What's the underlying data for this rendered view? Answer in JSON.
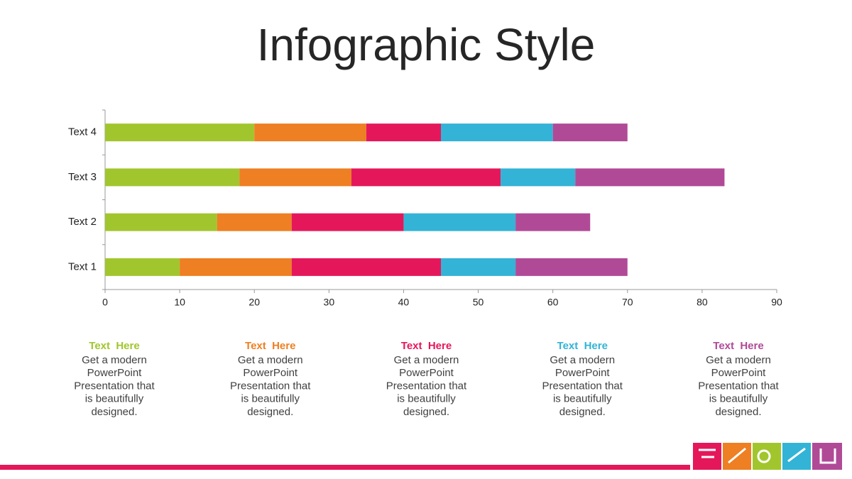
{
  "chart_data": {
    "type": "stacked-barh",
    "title": "Infographic Style",
    "categories": [
      "Text 1",
      "Text 2",
      "Text 3",
      "Text 4"
    ],
    "series": [
      {
        "color": "#a1c62d",
        "values": [
          10,
          15,
          18,
          20
        ]
      },
      {
        "color": "#ee7f22",
        "values": [
          15,
          10,
          15,
          15
        ]
      },
      {
        "color": "#e5175b",
        "values": [
          20,
          15,
          20,
          10
        ]
      },
      {
        "color": "#33b3d6",
        "values": [
          10,
          15,
          10,
          15
        ]
      },
      {
        "color": "#b04a97",
        "values": [
          15,
          10,
          20,
          10
        ]
      }
    ],
    "xlim": [
      0,
      90
    ],
    "xticks": [
      0,
      10,
      20,
      30,
      40,
      50,
      60,
      70,
      80,
      90
    ]
  },
  "captions": [
    {
      "title": "Text  Here",
      "lines": [
        "Get a modern",
        "PowerPoint",
        "Presentation that",
        "is beautifully",
        "designed."
      ]
    },
    {
      "title": "Text  Here",
      "lines": [
        "Get a modern",
        "PowerPoint",
        "Presentation that",
        "is beautifully",
        "designed."
      ]
    },
    {
      "title": "Text  Here",
      "lines": [
        "Get a modern",
        "PowerPoint",
        "Presentation that",
        "is beautifully",
        "designed."
      ]
    },
    {
      "title": "Text  Here",
      "lines": [
        "Get a modern",
        "PowerPoint",
        "Presentation that",
        "is beautifully",
        "designed."
      ]
    },
    {
      "title": "Text  Here",
      "lines": [
        "Get a modern",
        "PowerPoint",
        "Presentation that",
        "is beautifully",
        "designed."
      ]
    }
  ]
}
